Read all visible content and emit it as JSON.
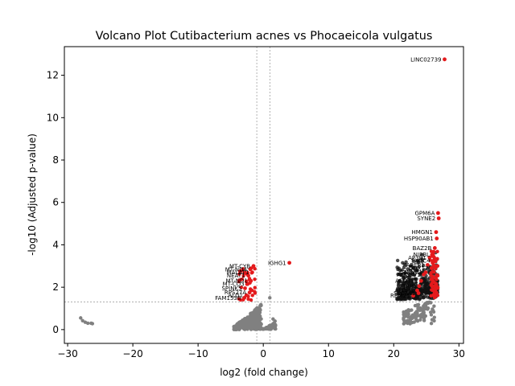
{
  "chart_data": {
    "type": "scatter",
    "title": "Volcano Plot Cutibacterium acnes vs Phocaeicola vulgatus",
    "xlabel": "log2 (fold change)",
    "ylabel": "-log10 (Adjusted p-value)",
    "xlim": [
      -30.5,
      30.7
    ],
    "ylim": [
      -0.65,
      13.35
    ],
    "xticks": [
      -30,
      -20,
      -10,
      0,
      10,
      20,
      30
    ],
    "yticks": [
      0,
      2,
      4,
      6,
      8,
      10,
      12
    ],
    "grid": false,
    "colors": {
      "significant": "#e41a1c",
      "not_significant": "#808080",
      "threshold": "#808080"
    },
    "thresholds": {
      "log2fc": [
        -1,
        1
      ],
      "neg_log10_p": 1.3
    },
    "significant_points": [
      {
        "x": 27.8,
        "y": 12.75,
        "label": "LINC02739"
      },
      {
        "x": 26.8,
        "y": 5.5,
        "label": "GPM6A"
      },
      {
        "x": 26.9,
        "y": 5.25,
        "label": "SYNE2"
      },
      {
        "x": 26.5,
        "y": 4.6,
        "label": "HMGN1"
      },
      {
        "x": 26.6,
        "y": 4.3,
        "label": "HSP90AB1"
      },
      {
        "x": 26.3,
        "y": 3.85,
        "label": "BAZ2B"
      },
      {
        "x": 26.0,
        "y": 3.55,
        "label": "NIPBL"
      },
      {
        "x": 25.5,
        "y": 3.4,
        "label": "AP3B1"
      },
      {
        "x": 26.1,
        "y": 3.25,
        "label": "EXOC4"
      },
      {
        "x": 25.2,
        "y": 3.05,
        "label": "RABEP1"
      },
      {
        "x": 25.8,
        "y": 2.9,
        "label": "DDX17"
      },
      {
        "x": 24.9,
        "y": 2.7,
        "label": "CTNNB1"
      },
      {
        "x": 24.6,
        "y": 2.6,
        "label": "ADGRV1"
      },
      {
        "x": 24.2,
        "y": 2.3,
        "label": "ACOT11"
      },
      {
        "x": 23.9,
        "y": 2.05,
        "label": "TRIO"
      },
      {
        "x": 23.6,
        "y": 1.85,
        "label": "ALDH2"
      },
      {
        "x": 23.8,
        "y": 1.72,
        "label": "SLC7A1"
      },
      {
        "x": 23.0,
        "y": 1.6,
        "label": "RBM25"
      },
      {
        "x": 4.0,
        "y": 3.15,
        "label": "IGHG1"
      },
      {
        "x": -1.5,
        "y": 3.0,
        "label": "MT-CYB"
      },
      {
        "x": -2.0,
        "y": 2.85,
        "label": "MT-ND4"
      },
      {
        "x": -1.7,
        "y": 2.7,
        "label": "MALAT1"
      },
      {
        "x": -2.3,
        "y": 2.55,
        "label": "NEAT1"
      },
      {
        "x": -1.9,
        "y": 2.3,
        "label": "MT-ND1"
      },
      {
        "x": -2.4,
        "y": 2.15,
        "label": "MT-CO3"
      },
      {
        "x": -2.8,
        "y": 1.95,
        "label": "SPINK5"
      },
      {
        "x": -2.1,
        "y": 1.75,
        "label": "RPS27A"
      },
      {
        "x": -2.6,
        "y": 1.62,
        "label": "ALG1"
      },
      {
        "x": -2.9,
        "y": 1.5,
        "label": "FAM153B"
      }
    ],
    "gray_points": [
      {
        "x": -28.0,
        "y": 0.55
      },
      {
        "x": -27.7,
        "y": 0.42
      },
      {
        "x": -27.3,
        "y": 0.35
      },
      {
        "x": -26.9,
        "y": 0.3
      },
      {
        "x": -26.4,
        "y": 0.3
      },
      {
        "x": -26.2,
        "y": 0.28
      },
      {
        "x": 1.0,
        "y": 1.5
      },
      {
        "x": 1.5,
        "y": 0.5
      },
      {
        "x": 1.8,
        "y": 0.4
      }
    ]
  }
}
